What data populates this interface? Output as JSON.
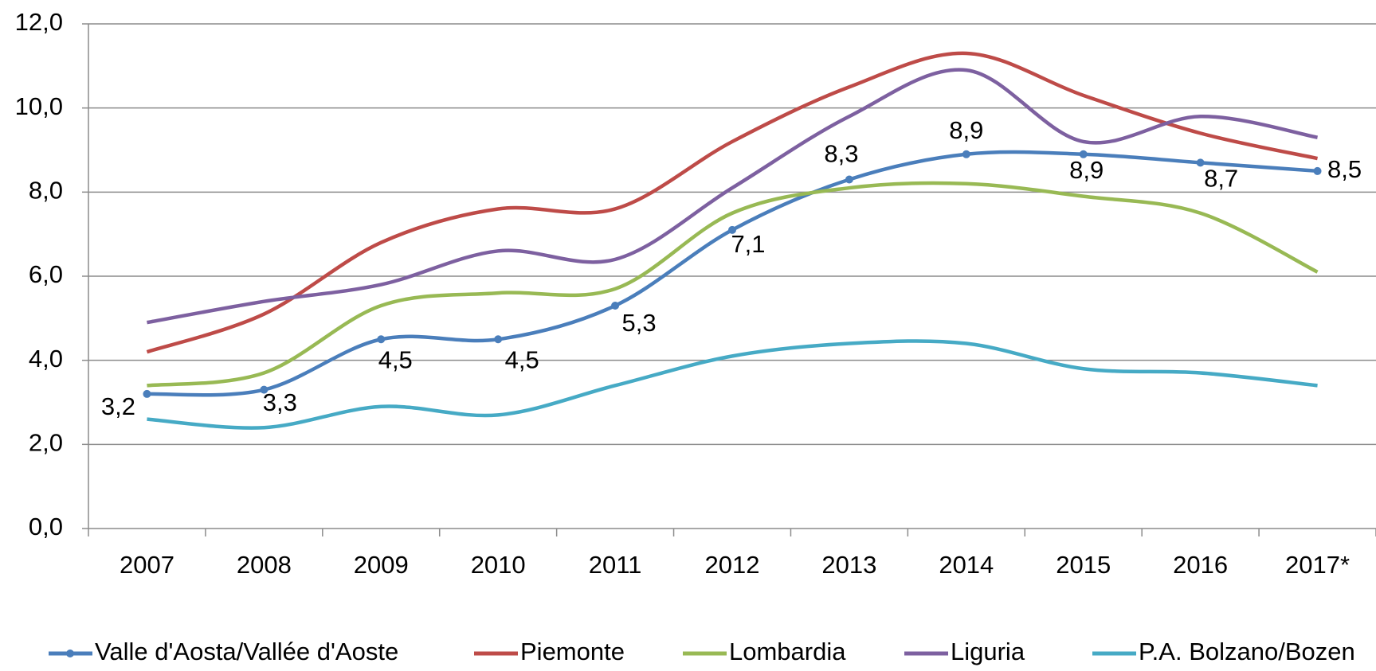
{
  "chart_data": {
    "type": "line",
    "categories": [
      "2007",
      "2008",
      "2009",
      "2010",
      "2011",
      "2012",
      "2013",
      "2014",
      "2015",
      "2016",
      "2017*"
    ],
    "ylim": [
      0,
      12
    ],
    "yticks": [
      {
        "value": 0,
        "label": "0,0"
      },
      {
        "value": 2,
        "label": "2,0"
      },
      {
        "value": 4,
        "label": "4,0"
      },
      {
        "value": 6,
        "label": "6,0"
      },
      {
        "value": 8,
        "label": "8,0"
      },
      {
        "value": 10,
        "label": "10,0"
      },
      {
        "value": 12,
        "label": "12,0"
      }
    ],
    "grid": true,
    "legend": "bottom",
    "series": [
      {
        "name": "Valle d'Aosta/Vallée d'Aoste",
        "color": "#4a7ebb",
        "markers": true,
        "values": [
          3.2,
          3.3,
          4.5,
          4.5,
          5.3,
          7.1,
          8.3,
          8.9,
          8.9,
          8.7,
          8.5
        ],
        "value_labels": [
          "3,2",
          "3,3",
          "4,5",
          "4,5",
          "5,3",
          "7,1",
          "8,3",
          "8,9",
          "8,9",
          "8,7",
          "8,5"
        ]
      },
      {
        "name": "Piemonte",
        "color": "#be4b48",
        "values": [
          4.2,
          5.1,
          6.8,
          7.6,
          7.6,
          9.2,
          10.5,
          11.3,
          10.3,
          9.4,
          8.8
        ]
      },
      {
        "name": "Lombardia",
        "color": "#98b954",
        "values": [
          3.4,
          3.7,
          5.3,
          5.6,
          5.7,
          7.5,
          8.1,
          8.2,
          7.9,
          7.5,
          6.1
        ]
      },
      {
        "name": "Liguria",
        "color": "#7d60a0",
        "values": [
          4.9,
          5.4,
          5.8,
          6.6,
          6.4,
          8.1,
          9.8,
          10.9,
          9.2,
          9.8,
          9.3
        ]
      },
      {
        "name": "P.A. Bolzano/Bozen",
        "color": "#46aac5",
        "values": [
          2.6,
          2.4,
          2.9,
          2.7,
          3.4,
          4.1,
          4.4,
          4.4,
          3.8,
          3.7,
          3.4
        ]
      }
    ]
  }
}
